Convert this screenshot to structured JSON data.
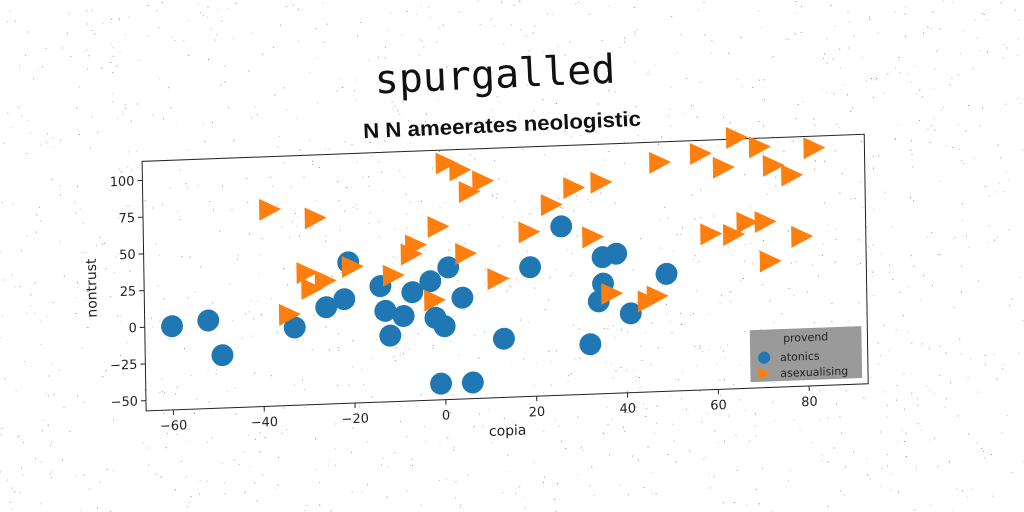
{
  "chart_data": {
    "type": "scatter",
    "title": "spurgalled",
    "subtitle": "N N ameerates neologistic",
    "xlabel": "copia",
    "ylabel": "nontrust",
    "xlim": [
      -66,
      93
    ],
    "ylim": [
      -57,
      113
    ],
    "xticks": [
      -60,
      -40,
      -20,
      0,
      20,
      40,
      60,
      80
    ],
    "yticks": [
      -50,
      -25,
      0,
      25,
      50,
      75,
      100
    ],
    "grid": false,
    "legend": {
      "title": "provend",
      "position": "bottom-right"
    },
    "series": [
      {
        "name": "atonics",
        "marker": "circle",
        "color": "#1f77b4",
        "points": [
          [
            -60,
            0
          ],
          [
            -52,
            3
          ],
          [
            -49,
            -21
          ],
          [
            -33,
            -4
          ],
          [
            -26,
            9
          ],
          [
            -22,
            14
          ],
          [
            -21,
            39
          ],
          [
            -14,
            22
          ],
          [
            -13,
            5
          ],
          [
            -12,
            -12
          ],
          [
            -9,
            1
          ],
          [
            -7,
            17
          ],
          [
            -3,
            24
          ],
          [
            -2,
            -1
          ],
          [
            -1,
            -46
          ],
          [
            0,
            -7
          ],
          [
            1,
            33
          ],
          [
            4,
            12
          ],
          [
            6,
            -46
          ],
          [
            13,
            -17
          ],
          [
            19,
            31
          ],
          [
            26,
            58
          ],
          [
            32,
            -23
          ],
          [
            34,
            6
          ],
          [
            35,
            18
          ],
          [
            35,
            36
          ],
          [
            38,
            38
          ],
          [
            41,
            -3
          ],
          [
            49,
            23
          ]
        ]
      },
      {
        "name": "asexualising",
        "marker": "triangle-right",
        "color": "#ff7f0e",
        "points": [
          [
            -38,
            77
          ],
          [
            -34,
            5
          ],
          [
            -30,
            33
          ],
          [
            -29,
            22
          ],
          [
            -28,
            70
          ],
          [
            -26,
            27
          ],
          [
            -20,
            36
          ],
          [
            -11,
            29
          ],
          [
            -7,
            43
          ],
          [
            -6,
            49
          ],
          [
            -2,
            11
          ],
          [
            -1,
            61
          ],
          [
            1,
            104
          ],
          [
            4,
            99
          ],
          [
            5,
            42
          ],
          [
            6,
            84
          ],
          [
            9,
            91
          ],
          [
            12,
            24
          ],
          [
            19,
            55
          ],
          [
            24,
            73
          ],
          [
            29,
            84
          ],
          [
            33,
            50
          ],
          [
            35,
            87
          ],
          [
            37,
            11
          ],
          [
            45,
            5
          ],
          [
            47,
            8
          ],
          [
            48,
            99
          ],
          [
            57,
            104
          ],
          [
            59,
            49
          ],
          [
            62,
            94
          ],
          [
            64,
            48
          ],
          [
            65,
            114
          ],
          [
            67,
            56
          ],
          [
            70,
            107
          ],
          [
            71,
            56
          ],
          [
            72,
            29
          ],
          [
            73,
            94
          ],
          [
            77,
            87
          ],
          [
            79,
            45
          ],
          [
            82,
            105
          ]
        ]
      }
    ]
  }
}
